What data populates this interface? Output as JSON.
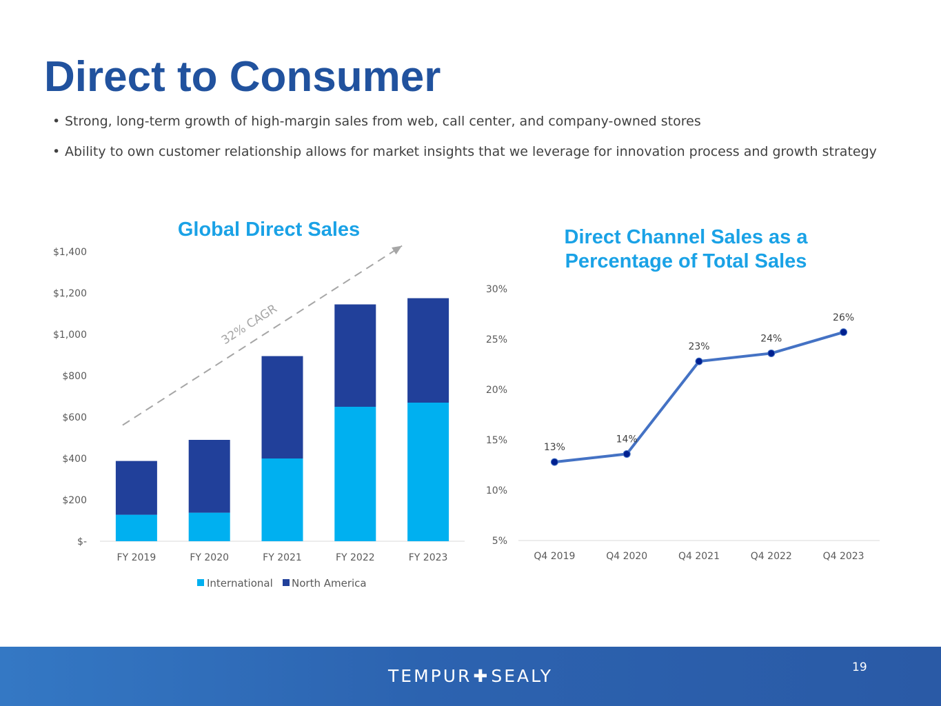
{
  "slide": {
    "title": "Direct to Consumer",
    "bullets": [
      "Strong, long-term growth of high-margin sales from web, call center, and company-owned stores",
      "Ability to own customer relationship allows for market insights that we leverage for innovation process and growth strategy"
    ],
    "bullet_symbol": "•",
    "page_number": "19",
    "brand_left": "TEMPUR",
    "brand_plus": "✚",
    "brand_right": "SEALY"
  },
  "colors": {
    "title": "#21529e",
    "chart_title": "#1aa2e6",
    "international": "#00b0f0",
    "north_america": "#21409a",
    "line": "#4472c4",
    "marker": "#002090",
    "cagr_arrow": "#a6a6a6"
  },
  "chart_data": [
    {
      "type": "bar",
      "stacked": true,
      "title": "Global Direct Sales",
      "categories": [
        "FY 2019",
        "FY 2020",
        "FY 2021",
        "FY 2022",
        "FY 2023"
      ],
      "series": [
        {
          "name": "International",
          "values": [
            128,
            138,
            400,
            650,
            670
          ]
        },
        {
          "name": "North America",
          "values": [
            260,
            352,
            495,
            495,
            505
          ]
        }
      ],
      "ylim": [
        0,
        1400
      ],
      "yticks": [
        0,
        200,
        400,
        600,
        800,
        1000,
        1200,
        1400
      ],
      "ytick_labels": [
        "$-",
        "$200",
        "$400",
        "$600",
        "$800",
        "$1,000",
        "$1,200",
        "$1,400"
      ],
      "annotation": "32% CAGR",
      "legend": "bottom",
      "grid": false
    },
    {
      "type": "line",
      "title": "Direct Channel Sales as a Percentage of Total Sales",
      "title_lines": [
        "Direct Channel Sales as a",
        "Percentage of Total Sales"
      ],
      "categories": [
        "Q4 2019",
        "Q4 2020",
        "Q4 2021",
        "Q4 2022",
        "Q4 2023"
      ],
      "values": [
        12.8,
        13.6,
        22.8,
        23.6,
        25.7
      ],
      "data_labels": [
        "13%",
        "14%",
        "23%",
        "24%",
        "26%"
      ],
      "ylim": [
        5,
        30
      ],
      "yticks": [
        5,
        10,
        15,
        20,
        25,
        30
      ],
      "ytick_labels": [
        "5%",
        "10%",
        "15%",
        "20%",
        "25%",
        "30%"
      ],
      "grid": false
    }
  ]
}
